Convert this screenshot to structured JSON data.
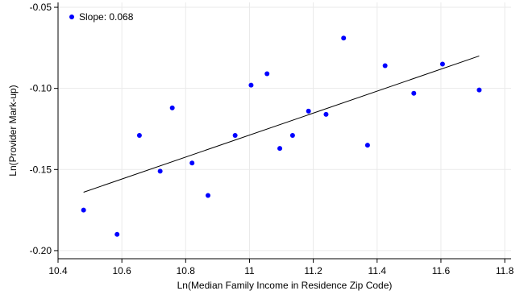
{
  "chart_data": {
    "type": "scatter",
    "xlabel": "Ln(Median Family Income in Residence Zip Code)",
    "ylabel": "Ln(Provider Mark-up)",
    "xlim": [
      10.4,
      11.82
    ],
    "ylim": [
      -0.205,
      -0.047
    ],
    "xticks": [
      10.4,
      10.6,
      10.8,
      11,
      11.2,
      11.4,
      11.6,
      11.8
    ],
    "xtick_labels": [
      "10.4",
      "10.6",
      "10.8",
      "11",
      "11.2",
      "11.4",
      "11.6",
      "11.8"
    ],
    "yticks": [
      -0.2,
      -0.15,
      -0.1,
      -0.05
    ],
    "ytick_labels": [
      "-0.20",
      "-0.15",
      "-0.10",
      "-0.05"
    ],
    "grid": true,
    "legend": {
      "position": "top-left",
      "label": "Slope: 0.068"
    },
    "point_color": "#0000ff",
    "series": [
      {
        "x": [
          10.48,
          10.585,
          10.655,
          10.72,
          10.758,
          10.82,
          10.87,
          10.955,
          11.005,
          11.055,
          11.095,
          11.135,
          11.185,
          11.24,
          11.295,
          11.37,
          11.425,
          11.515,
          11.605,
          11.72
        ],
        "y": [
          -0.175,
          -0.19,
          -0.129,
          -0.151,
          -0.112,
          -0.146,
          -0.166,
          -0.129,
          -0.098,
          -0.091,
          -0.137,
          -0.129,
          -0.114,
          -0.116,
          -0.069,
          -0.135,
          -0.086,
          -0.103,
          -0.085,
          -0.101
        ]
      }
    ],
    "fit_line": {
      "x": [
        10.48,
        11.72
      ],
      "y": [
        -0.164,
        -0.08
      ]
    }
  }
}
